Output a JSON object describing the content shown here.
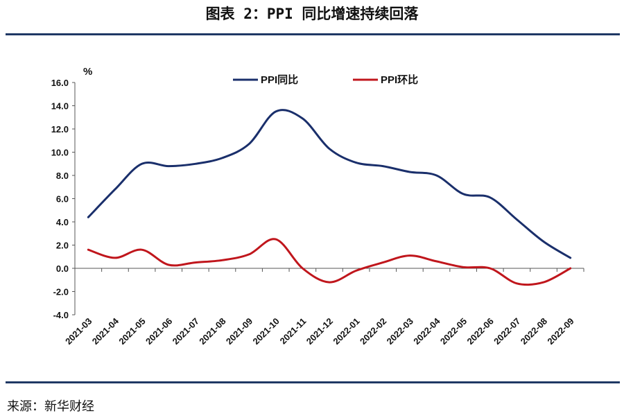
{
  "page": {
    "title": "图表 2：PPI 同比增速持续回落",
    "source": "来源：新华财经"
  },
  "colors": {
    "rule": "#1f3864",
    "series_yoy": "#1a2f6b",
    "series_mom": "#c0161c",
    "axis": "#555555",
    "text": "#111111"
  },
  "chart_data": {
    "type": "line",
    "title": "",
    "ylabel": "%",
    "ylim": [
      -4.0,
      16.0
    ],
    "yticks": [
      "-4.0",
      "-2.0",
      "0.0",
      "2.0",
      "4.0",
      "6.0",
      "8.0",
      "10.0",
      "12.0",
      "14.0",
      "16.0"
    ],
    "ytick_values": [
      -4,
      -2,
      0,
      2,
      4,
      6,
      8,
      10,
      12,
      14,
      16
    ],
    "categories": [
      "2021-03",
      "2021-04",
      "2021-05",
      "2021-06",
      "2021-07",
      "2021-08",
      "2021-09",
      "2021-10",
      "2021-11",
      "2021-12",
      "2022-01",
      "2022-02",
      "2022-03",
      "2022-04",
      "2022-05",
      "2022-06",
      "2022-07",
      "2022-08",
      "2022-09"
    ],
    "series": [
      {
        "name": "PPI同比",
        "color": "#1a2f6b",
        "values": [
          4.4,
          6.8,
          9.0,
          8.8,
          9.0,
          9.5,
          10.7,
          13.5,
          12.9,
          10.3,
          9.1,
          8.8,
          8.3,
          8.0,
          6.4,
          6.1,
          4.2,
          2.3,
          0.9
        ]
      },
      {
        "name": "PPI环比",
        "color": "#c0161c",
        "values": [
          1.6,
          0.9,
          1.6,
          0.3,
          0.5,
          0.7,
          1.2,
          2.5,
          0.0,
          -1.2,
          -0.2,
          0.5,
          1.1,
          0.6,
          0.1,
          0.0,
          -1.3,
          -1.2,
          0.0
        ]
      }
    ],
    "legend": "top"
  }
}
